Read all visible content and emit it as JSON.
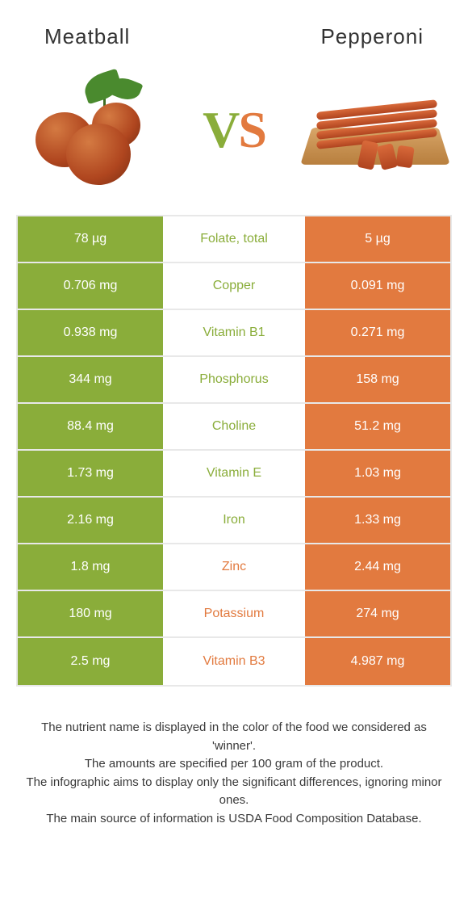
{
  "colors": {
    "left": "#8aad3a",
    "right": "#e27a3f",
    "row_border": "#e8e8e8"
  },
  "header": {
    "left": "Meatball",
    "right": "Pepperoni"
  },
  "vs": {
    "v": "V",
    "s": "S"
  },
  "rows": [
    {
      "left": "78 µg",
      "label": "Folate, total",
      "right": "5 µg",
      "winner": "left"
    },
    {
      "left": "0.706 mg",
      "label": "Copper",
      "right": "0.091 mg",
      "winner": "left"
    },
    {
      "left": "0.938 mg",
      "label": "Vitamin B1",
      "right": "0.271 mg",
      "winner": "left"
    },
    {
      "left": "344 mg",
      "label": "Phosphorus",
      "right": "158 mg",
      "winner": "left"
    },
    {
      "left": "88.4 mg",
      "label": "Choline",
      "right": "51.2 mg",
      "winner": "left"
    },
    {
      "left": "1.73 mg",
      "label": "Vitamin E",
      "right": "1.03 mg",
      "winner": "left"
    },
    {
      "left": "2.16 mg",
      "label": "Iron",
      "right": "1.33 mg",
      "winner": "left"
    },
    {
      "left": "1.8 mg",
      "label": "Zinc",
      "right": "2.44 mg",
      "winner": "right"
    },
    {
      "left": "180 mg",
      "label": "Potassium",
      "right": "274 mg",
      "winner": "right"
    },
    {
      "left": "2.5 mg",
      "label": "Vitamin B3",
      "right": "4.987 mg",
      "winner": "right"
    }
  ],
  "footer": {
    "line1": "The nutrient name is displayed in the color of the food we considered as 'winner'.",
    "line2": "The amounts are specified per 100 gram of the product.",
    "line3": "The infographic aims to display only the significant differences, ignoring minor ones.",
    "line4": "The main source of information is USDA Food Composition Database."
  }
}
